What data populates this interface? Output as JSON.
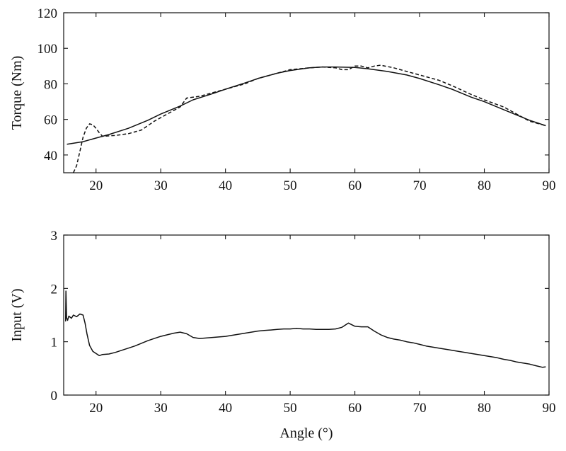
{
  "chart_data": [
    {
      "type": "line",
      "title": "",
      "xlabel": "",
      "ylabel": "Torque (Nm)",
      "xlim": [
        15,
        90
      ],
      "ylim": [
        30,
        120
      ],
      "xticks": [
        "20",
        "30",
        "40",
        "50",
        "60",
        "70",
        "80",
        "90"
      ],
      "yticks": [
        "40",
        "60",
        "80",
        "100",
        "120"
      ],
      "grid": false,
      "legend": "none",
      "series": [
        {
          "style": "solid",
          "color": "#111111",
          "x": [
            15.5,
            18,
            20,
            22,
            25,
            28,
            30,
            33,
            35,
            38,
            40,
            43,
            45,
            48,
            50,
            53,
            55,
            57,
            60,
            62,
            65,
            68,
            70,
            73,
            75,
            78,
            80,
            83,
            85,
            87,
            89.5
          ],
          "y": [
            46,
            47.5,
            49.5,
            51.5,
            55,
            59.5,
            63,
            67.5,
            71,
            74.5,
            77,
            80.5,
            83,
            86,
            87.5,
            89,
            89.5,
            89.5,
            89.2,
            88.5,
            87,
            85,
            83,
            79.5,
            77,
            72.5,
            70,
            65.5,
            62.5,
            59.5,
            56.5
          ]
        },
        {
          "style": "dashed",
          "color": "#111111",
          "x": [
            16.5,
            17,
            17.5,
            18,
            18.5,
            19,
            19.5,
            20,
            20.5,
            21,
            23,
            25,
            27,
            29,
            31,
            33,
            34,
            36,
            38,
            40,
            43,
            45,
            48,
            50,
            53,
            55,
            57,
            58,
            59,
            60,
            61,
            62,
            63,
            64,
            66,
            68,
            70,
            73,
            75,
            78,
            80,
            83,
            85,
            87,
            89.5
          ],
          "y": [
            30,
            34,
            42,
            50,
            55,
            57.5,
            57,
            55,
            52.5,
            50.5,
            51,
            52,
            54,
            59,
            63,
            67,
            72,
            73,
            75,
            77,
            80,
            83,
            86,
            88,
            89,
            89.5,
            89,
            88,
            88,
            90,
            90,
            89,
            90,
            90.5,
            89,
            87,
            85,
            82,
            79,
            74,
            71,
            67,
            63,
            59,
            56.5
          ]
        }
      ]
    },
    {
      "type": "line",
      "title": "",
      "xlabel": "Angle (°)",
      "ylabel": "Input (V)",
      "xlim": [
        15,
        90
      ],
      "ylim": [
        0,
        3
      ],
      "xticks": [
        "20",
        "30",
        "40",
        "50",
        "60",
        "70",
        "80",
        "90"
      ],
      "yticks": [
        "0",
        "1",
        "2",
        "3"
      ],
      "grid": false,
      "legend": "none",
      "series": [
        {
          "style": "solid",
          "color": "#111111",
          "x": [
            15.3,
            15.35,
            15.45,
            15.6,
            15.8,
            16.2,
            16.5,
            17,
            17.5,
            18,
            18.3,
            18.6,
            19,
            19.5,
            20,
            20.5,
            21,
            22,
            23,
            24,
            25,
            26,
            27,
            28,
            29,
            30,
            31,
            32,
            33,
            34,
            35,
            36,
            37,
            38,
            39,
            40,
            41,
            42,
            43,
            44,
            45,
            46,
            47,
            48,
            49,
            50,
            51,
            52,
            53,
            54,
            55,
            56,
            57,
            58,
            58.5,
            59,
            59.5,
            60,
            61,
            62,
            63,
            64,
            65,
            66,
            67,
            68,
            69,
            70,
            71,
            72,
            73,
            74,
            75,
            76,
            77,
            78,
            79,
            80,
            81,
            82,
            83,
            84,
            85,
            86,
            87,
            88,
            89,
            89.5
          ],
          "y": [
            1.38,
            1.95,
            1.45,
            1.4,
            1.48,
            1.44,
            1.5,
            1.47,
            1.52,
            1.5,
            1.35,
            1.15,
            0.93,
            0.82,
            0.78,
            0.74,
            0.76,
            0.77,
            0.8,
            0.84,
            0.88,
            0.92,
            0.97,
            1.02,
            1.06,
            1.1,
            1.13,
            1.16,
            1.18,
            1.15,
            1.08,
            1.06,
            1.07,
            1.08,
            1.09,
            1.1,
            1.12,
            1.14,
            1.16,
            1.18,
            1.2,
            1.21,
            1.22,
            1.23,
            1.24,
            1.24,
            1.25,
            1.24,
            1.24,
            1.23,
            1.23,
            1.23,
            1.24,
            1.27,
            1.31,
            1.35,
            1.32,
            1.29,
            1.28,
            1.28,
            1.2,
            1.13,
            1.08,
            1.05,
            1.03,
            1.0,
            0.98,
            0.95,
            0.92,
            0.9,
            0.88,
            0.86,
            0.84,
            0.82,
            0.8,
            0.78,
            0.76,
            0.74,
            0.72,
            0.7,
            0.67,
            0.65,
            0.62,
            0.6,
            0.58,
            0.55,
            0.52,
            0.53
          ]
        }
      ]
    }
  ]
}
